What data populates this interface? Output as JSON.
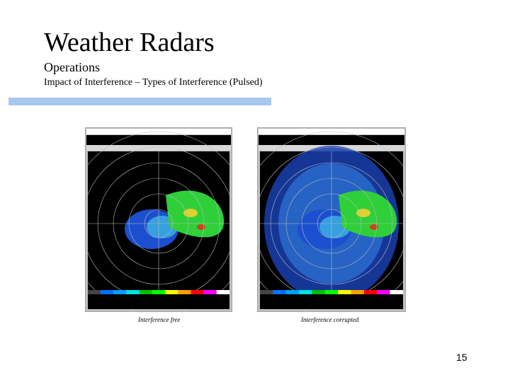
{
  "header": {
    "title": "Weather Radars",
    "subtitle": "Operations",
    "topic": "Impact of  Interference – Types of Interference (Pulsed)"
  },
  "figures": [
    {
      "caption": "Interference free"
    },
    {
      "caption": "Interference corrupted"
    }
  ],
  "footer": {
    "page_number": "15"
  }
}
